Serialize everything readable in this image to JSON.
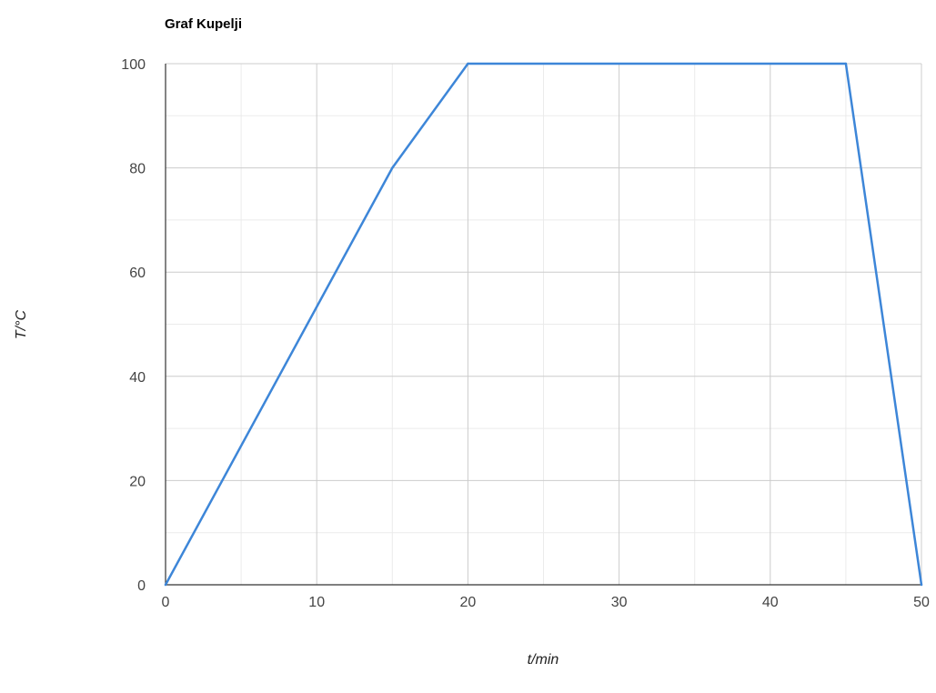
{
  "chart_data": {
    "type": "line",
    "title": "Graf Kupelji",
    "xlabel": "t/min",
    "ylabel": "T/°C",
    "xlim": [
      0,
      50
    ],
    "ylim": [
      0,
      100
    ],
    "x_ticks": [
      0,
      10,
      20,
      30,
      40,
      50
    ],
    "y_ticks": [
      0,
      20,
      40,
      60,
      80,
      100
    ],
    "minor_x_ticks": [
      5,
      15,
      25,
      35,
      45
    ],
    "minor_y_ticks": [
      10,
      30,
      50,
      70,
      90
    ],
    "grid": true,
    "legend": "none",
    "series": [
      {
        "color": "#3d86d8",
        "points": [
          {
            "x": 0,
            "y": 0
          },
          {
            "x": 15,
            "y": 80
          },
          {
            "x": 20,
            "y": 100
          },
          {
            "x": 45,
            "y": 100
          },
          {
            "x": 50,
            "y": 0
          }
        ]
      }
    ]
  }
}
